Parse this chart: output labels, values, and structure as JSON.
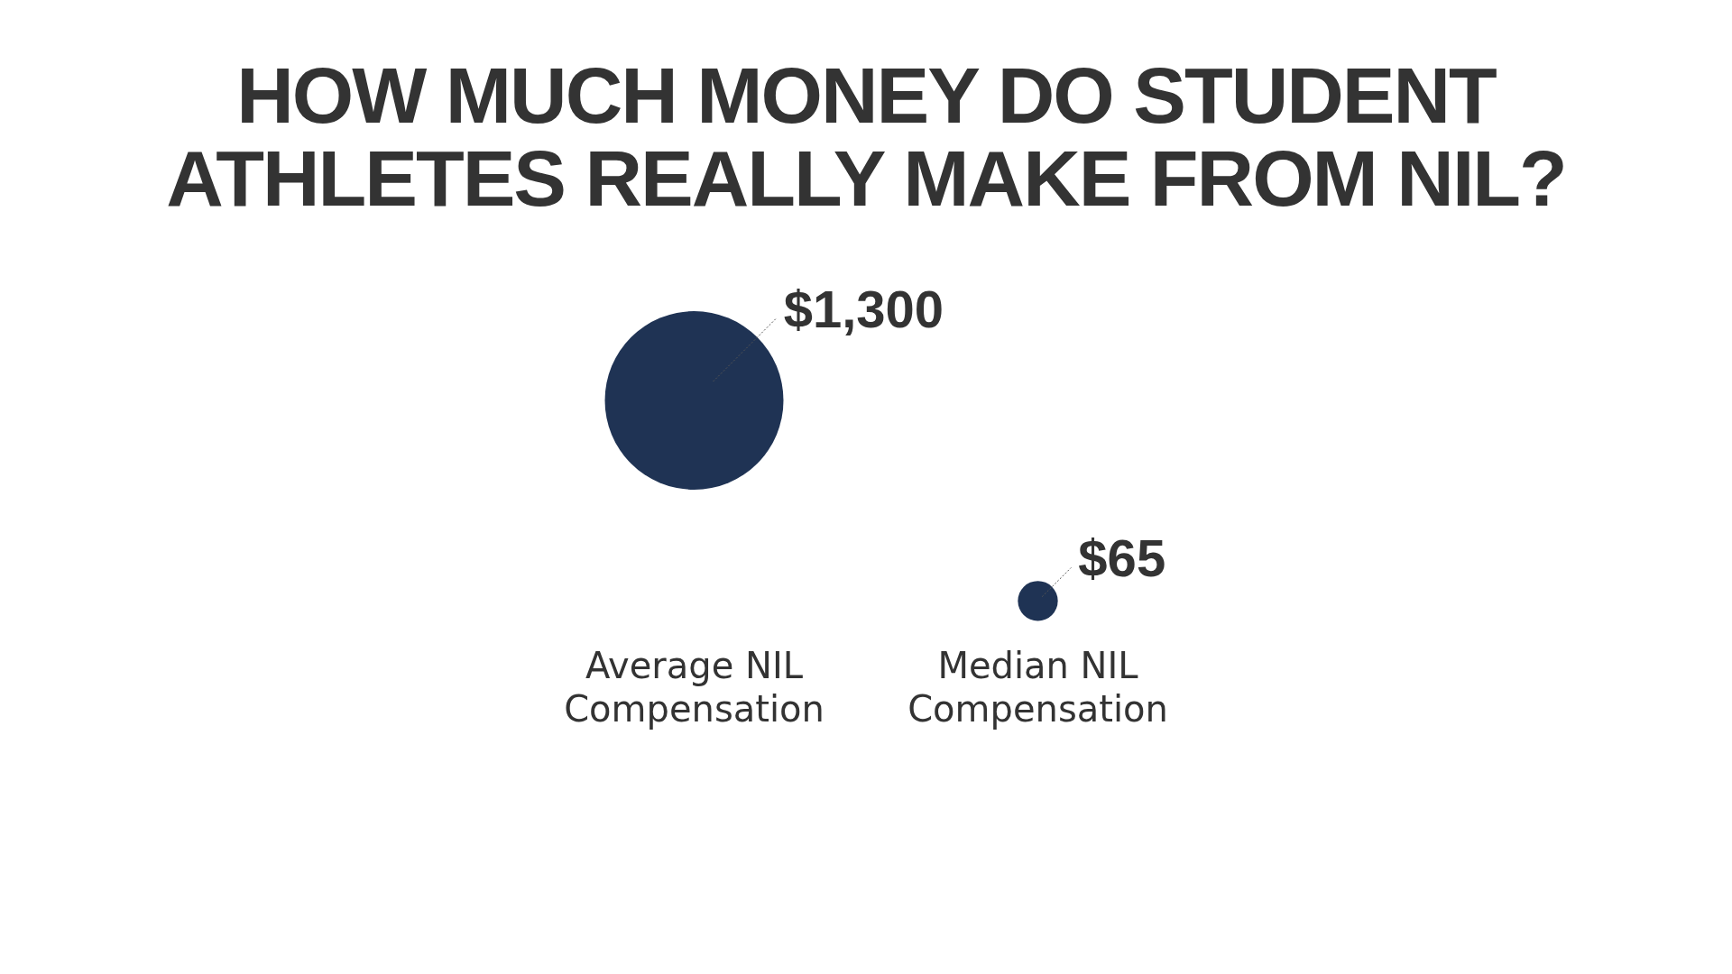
{
  "chart_data": {
    "type": "bubble",
    "title": "HOW MUCH MONEY DO STUDENT\nATHLETES REALLY MAKE FROM NIL?",
    "categories": [
      "Average NIL Compensation",
      "Median NIL Compensation"
    ],
    "tick_labels": "x",
    "series": [
      {
        "color": "#1f3354",
        "values": [
          1300,
          65
        ],
        "sizes": [
          1300,
          65
        ],
        "value_labels": [
          "$1,300",
          "$65"
        ]
      }
    ],
    "legend": false,
    "grid": false
  }
}
